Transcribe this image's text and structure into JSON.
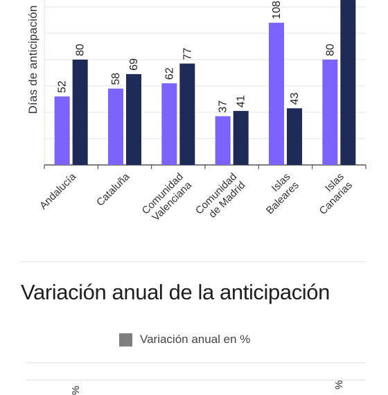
{
  "chart_data": [
    {
      "type": "bar",
      "ylabel": "Días de anticipación",
      "categories": [
        [
          "Andalucía"
        ],
        [
          "Cataluña"
        ],
        [
          "Comunidad",
          "Valenciana"
        ],
        [
          "Comunidad",
          "de Madrid"
        ],
        [
          "Islas",
          "Baleares"
        ],
        [
          "Islas",
          "Canarias"
        ]
      ],
      "series": [
        {
          "color": "#7b63fb",
          "values": [
            52,
            58,
            62,
            37,
            108,
            80
          ]
        },
        {
          "color": "#1e2a57",
          "values": [
            80,
            69,
            77,
            41,
            43,
            null
          ]
        }
      ],
      "grid": true
    },
    {
      "type": "bar",
      "title": "Variación anual de la anticipación",
      "legend": [
        {
          "label": "Variación anual en %",
          "color": "#7f7f7f"
        }
      ]
    }
  ]
}
